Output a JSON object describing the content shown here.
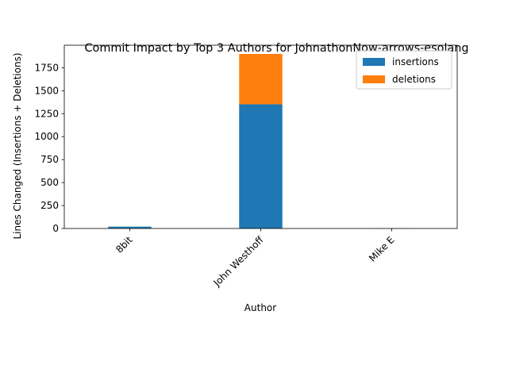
{
  "chart_data": {
    "type": "bar",
    "stacked": true,
    "title": "Commit Impact by Top 3 Authors for JohnathonNow-arrows-esolang",
    "xlabel": "Author",
    "ylabel": "Lines Changed (Insertions + Deletions)",
    "categories": [
      "8bit",
      "John Westhoff",
      "Mike E"
    ],
    "series": [
      {
        "name": "insertions",
        "values": [
          20,
          1352,
          2
        ],
        "color": "#1f77b4"
      },
      {
        "name": "deletions",
        "values": [
          0,
          548,
          0
        ],
        "color": "#ff7f0e"
      }
    ],
    "ylim": [
      0,
      1995
    ],
    "yticks": [
      0,
      250,
      500,
      750,
      1000,
      1250,
      1500,
      1750
    ],
    "legend_position": "top-right",
    "grid": false
  }
}
